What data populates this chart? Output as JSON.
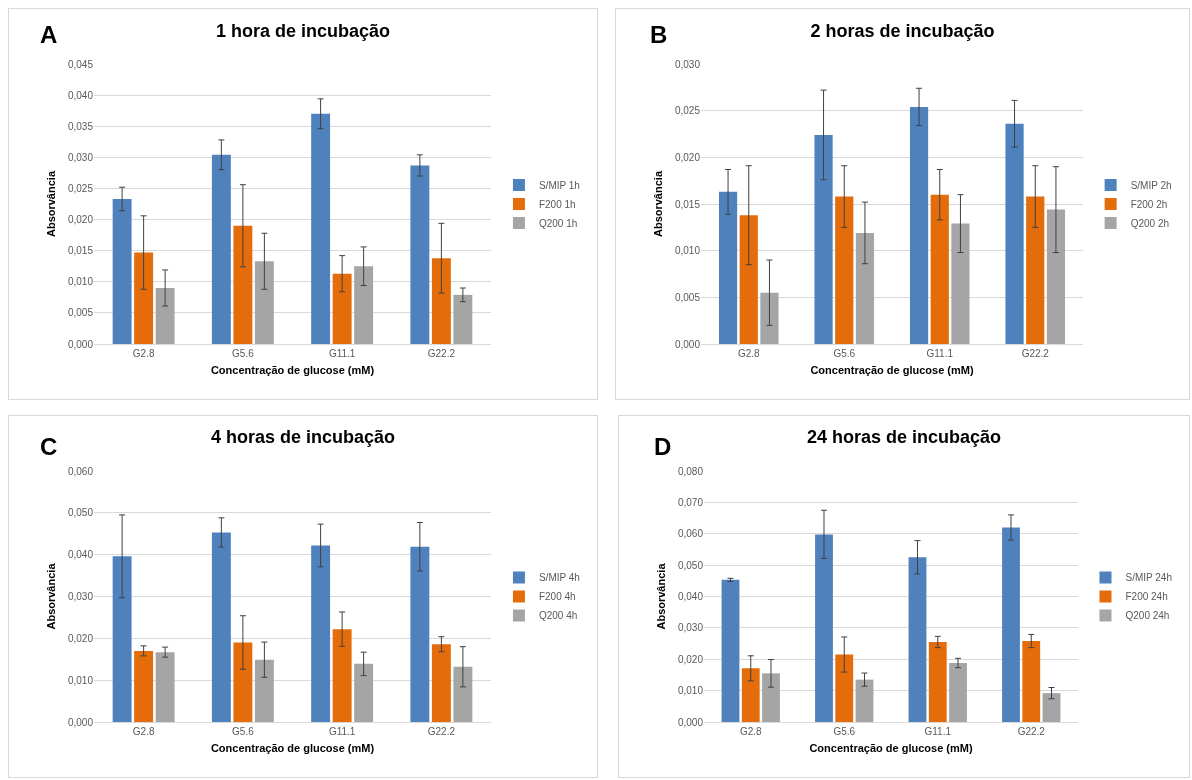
{
  "chart_data": [
    {
      "type": "bar",
      "title": "1 hora de incubação",
      "xlabel": "Concentração de glucose (mM)",
      "ylabel": "Absorvância",
      "annotations": [
        "A"
      ],
      "categories": [
        "G2.8",
        "G5.6",
        "G11.1",
        "G22.2"
      ],
      "ylim": [
        0,
        0.045
      ],
      "yticks": [
        {
          "value": 0,
          "label": "0,000"
        },
        {
          "value": 0.005,
          "label": "0,005"
        },
        {
          "value": 0.01,
          "label": "0,010"
        },
        {
          "value": 0.015,
          "label": "0,015"
        },
        {
          "value": 0.02,
          "label": "0,020"
        },
        {
          "value": 0.025,
          "label": "0,025"
        },
        {
          "value": 0.03,
          "label": "0,030"
        },
        {
          "value": 0.035,
          "label": "0,035"
        },
        {
          "value": 0.04,
          "label": "0,040"
        },
        {
          "value": 0.045,
          "label": "0,045"
        }
      ],
      "grid": "y",
      "legend": "right",
      "series": [
        {
          "name": "S/MIP 1h",
          "color": "#4f81bd",
          "values": [
            0.0233,
            0.0304,
            0.037,
            0.0287
          ],
          "errors": [
            0.0019,
            0.0024,
            0.0024,
            0.0017
          ]
        },
        {
          "name": "F200 1h",
          "color": "#e46c0a",
          "values": [
            0.0147,
            0.019,
            0.0113,
            0.0138
          ],
          "errors": [
            0.0059,
            0.0066,
            0.0029,
            0.0056
          ]
        },
        {
          "name": "Q200 1h",
          "color": "#a5a5a5",
          "values": [
            0.009,
            0.0133,
            0.0125,
            0.0079
          ],
          "errors": [
            0.0029,
            0.0045,
            0.0031,
            0.0011
          ]
        }
      ]
    },
    {
      "type": "bar",
      "title": "2 horas de incubação",
      "xlabel": "Concentração de glucose (mM)",
      "ylabel": "Absorvância",
      "annotations": [
        "B"
      ],
      "categories": [
        "G2.8",
        "G5.6",
        "G11.1",
        "G22.2"
      ],
      "ylim": [
        0,
        0.03
      ],
      "yticks": [
        {
          "value": 0,
          "label": "0,000"
        },
        {
          "value": 0.005,
          "label": "0,005"
        },
        {
          "value": 0.01,
          "label": "0,010"
        },
        {
          "value": 0.015,
          "label": "0,015"
        },
        {
          "value": 0.02,
          "label": "0,020"
        },
        {
          "value": 0.025,
          "label": "0,025"
        },
        {
          "value": 0.03,
          "label": "0,030"
        }
      ],
      "grid": "y",
      "legend": "right",
      "series": [
        {
          "name": "S/MIP 2h",
          "color": "#4f81bd",
          "values": [
            0.0163,
            0.0224,
            0.0254,
            0.0236
          ],
          "errors": [
            0.0024,
            0.0048,
            0.002,
            0.0025
          ]
        },
        {
          "name": "F200 2h",
          "color": "#e46c0a",
          "values": [
            0.0138,
            0.0158,
            0.016,
            0.0158
          ],
          "errors": [
            0.0053,
            0.0033,
            0.0027,
            0.0033
          ]
        },
        {
          "name": "Q200 2h",
          "color": "#a5a5a5",
          "values": [
            0.0055,
            0.0119,
            0.0129,
            0.0144
          ],
          "errors": [
            0.0035,
            0.0033,
            0.0031,
            0.0046
          ]
        }
      ]
    },
    {
      "type": "bar",
      "title": "4 horas de incubação",
      "xlabel": "Concentração de glucose (mM)",
      "ylabel": "Absorvância",
      "annotations": [
        "C"
      ],
      "categories": [
        "G2.8",
        "G5.6",
        "G11.1",
        "G22.2"
      ],
      "ylim": [
        0,
        0.06
      ],
      "yticks": [
        {
          "value": 0,
          "label": "0,000"
        },
        {
          "value": 0.01,
          "label": "0,010"
        },
        {
          "value": 0.02,
          "label": "0,020"
        },
        {
          "value": 0.03,
          "label": "0,030"
        },
        {
          "value": 0.04,
          "label": "0,040"
        },
        {
          "value": 0.05,
          "label": "0,050"
        },
        {
          "value": 0.06,
          "label": "0,060"
        }
      ],
      "grid": "y",
      "legend": "right",
      "series": [
        {
          "name": "S/MIP 4h",
          "color": "#4f81bd",
          "values": [
            0.0396,
            0.0453,
            0.0422,
            0.0419
          ],
          "errors": [
            0.0099,
            0.0035,
            0.0051,
            0.0058
          ]
        },
        {
          "name": "F200 4h",
          "color": "#e46c0a",
          "values": [
            0.017,
            0.019,
            0.0222,
            0.0186
          ],
          "errors": [
            0.0012,
            0.0064,
            0.0041,
            0.0018
          ]
        },
        {
          "name": "Q200 4h",
          "color": "#a5a5a5",
          "values": [
            0.0167,
            0.0149,
            0.0139,
            0.0132
          ],
          "errors": [
            0.0012,
            0.0042,
            0.0028,
            0.0048
          ]
        }
      ]
    },
    {
      "type": "bar",
      "title": "24 horas de incubação",
      "xlabel": "Concentração de glucose (mM)",
      "ylabel": "Absorvância",
      "annotations": [
        "D"
      ],
      "categories": [
        "G2.8",
        "G5.6",
        "G11.1",
        "G22.2"
      ],
      "ylim": [
        0,
        0.08
      ],
      "yticks": [
        {
          "value": 0,
          "label": "0,000"
        },
        {
          "value": 0.01,
          "label": "0,010"
        },
        {
          "value": 0.02,
          "label": "0,020"
        },
        {
          "value": 0.03,
          "label": "0,030"
        },
        {
          "value": 0.04,
          "label": "0,040"
        },
        {
          "value": 0.05,
          "label": "0,050"
        },
        {
          "value": 0.06,
          "label": "0,060"
        },
        {
          "value": 0.07,
          "label": "0,070"
        },
        {
          "value": 0.08,
          "label": "0,080"
        }
      ],
      "grid": "y",
      "legend": "right",
      "series": [
        {
          "name": "S/MIP 24h",
          "color": "#4f81bd",
          "values": [
            0.0453,
            0.0598,
            0.0525,
            0.062
          ],
          "errors": [
            0.0005,
            0.0077,
            0.0053,
            0.004
          ]
        },
        {
          "name": "F200 24h",
          "color": "#e46c0a",
          "values": [
            0.0171,
            0.0215,
            0.0255,
            0.0258
          ],
          "errors": [
            0.004,
            0.0056,
            0.0018,
            0.0021
          ]
        },
        {
          "name": "Q200 24h",
          "color": "#a5a5a5",
          "values": [
            0.0155,
            0.0135,
            0.0188,
            0.0092
          ],
          "errors": [
            0.0044,
            0.0021,
            0.0015,
            0.0018
          ]
        }
      ]
    }
  ]
}
